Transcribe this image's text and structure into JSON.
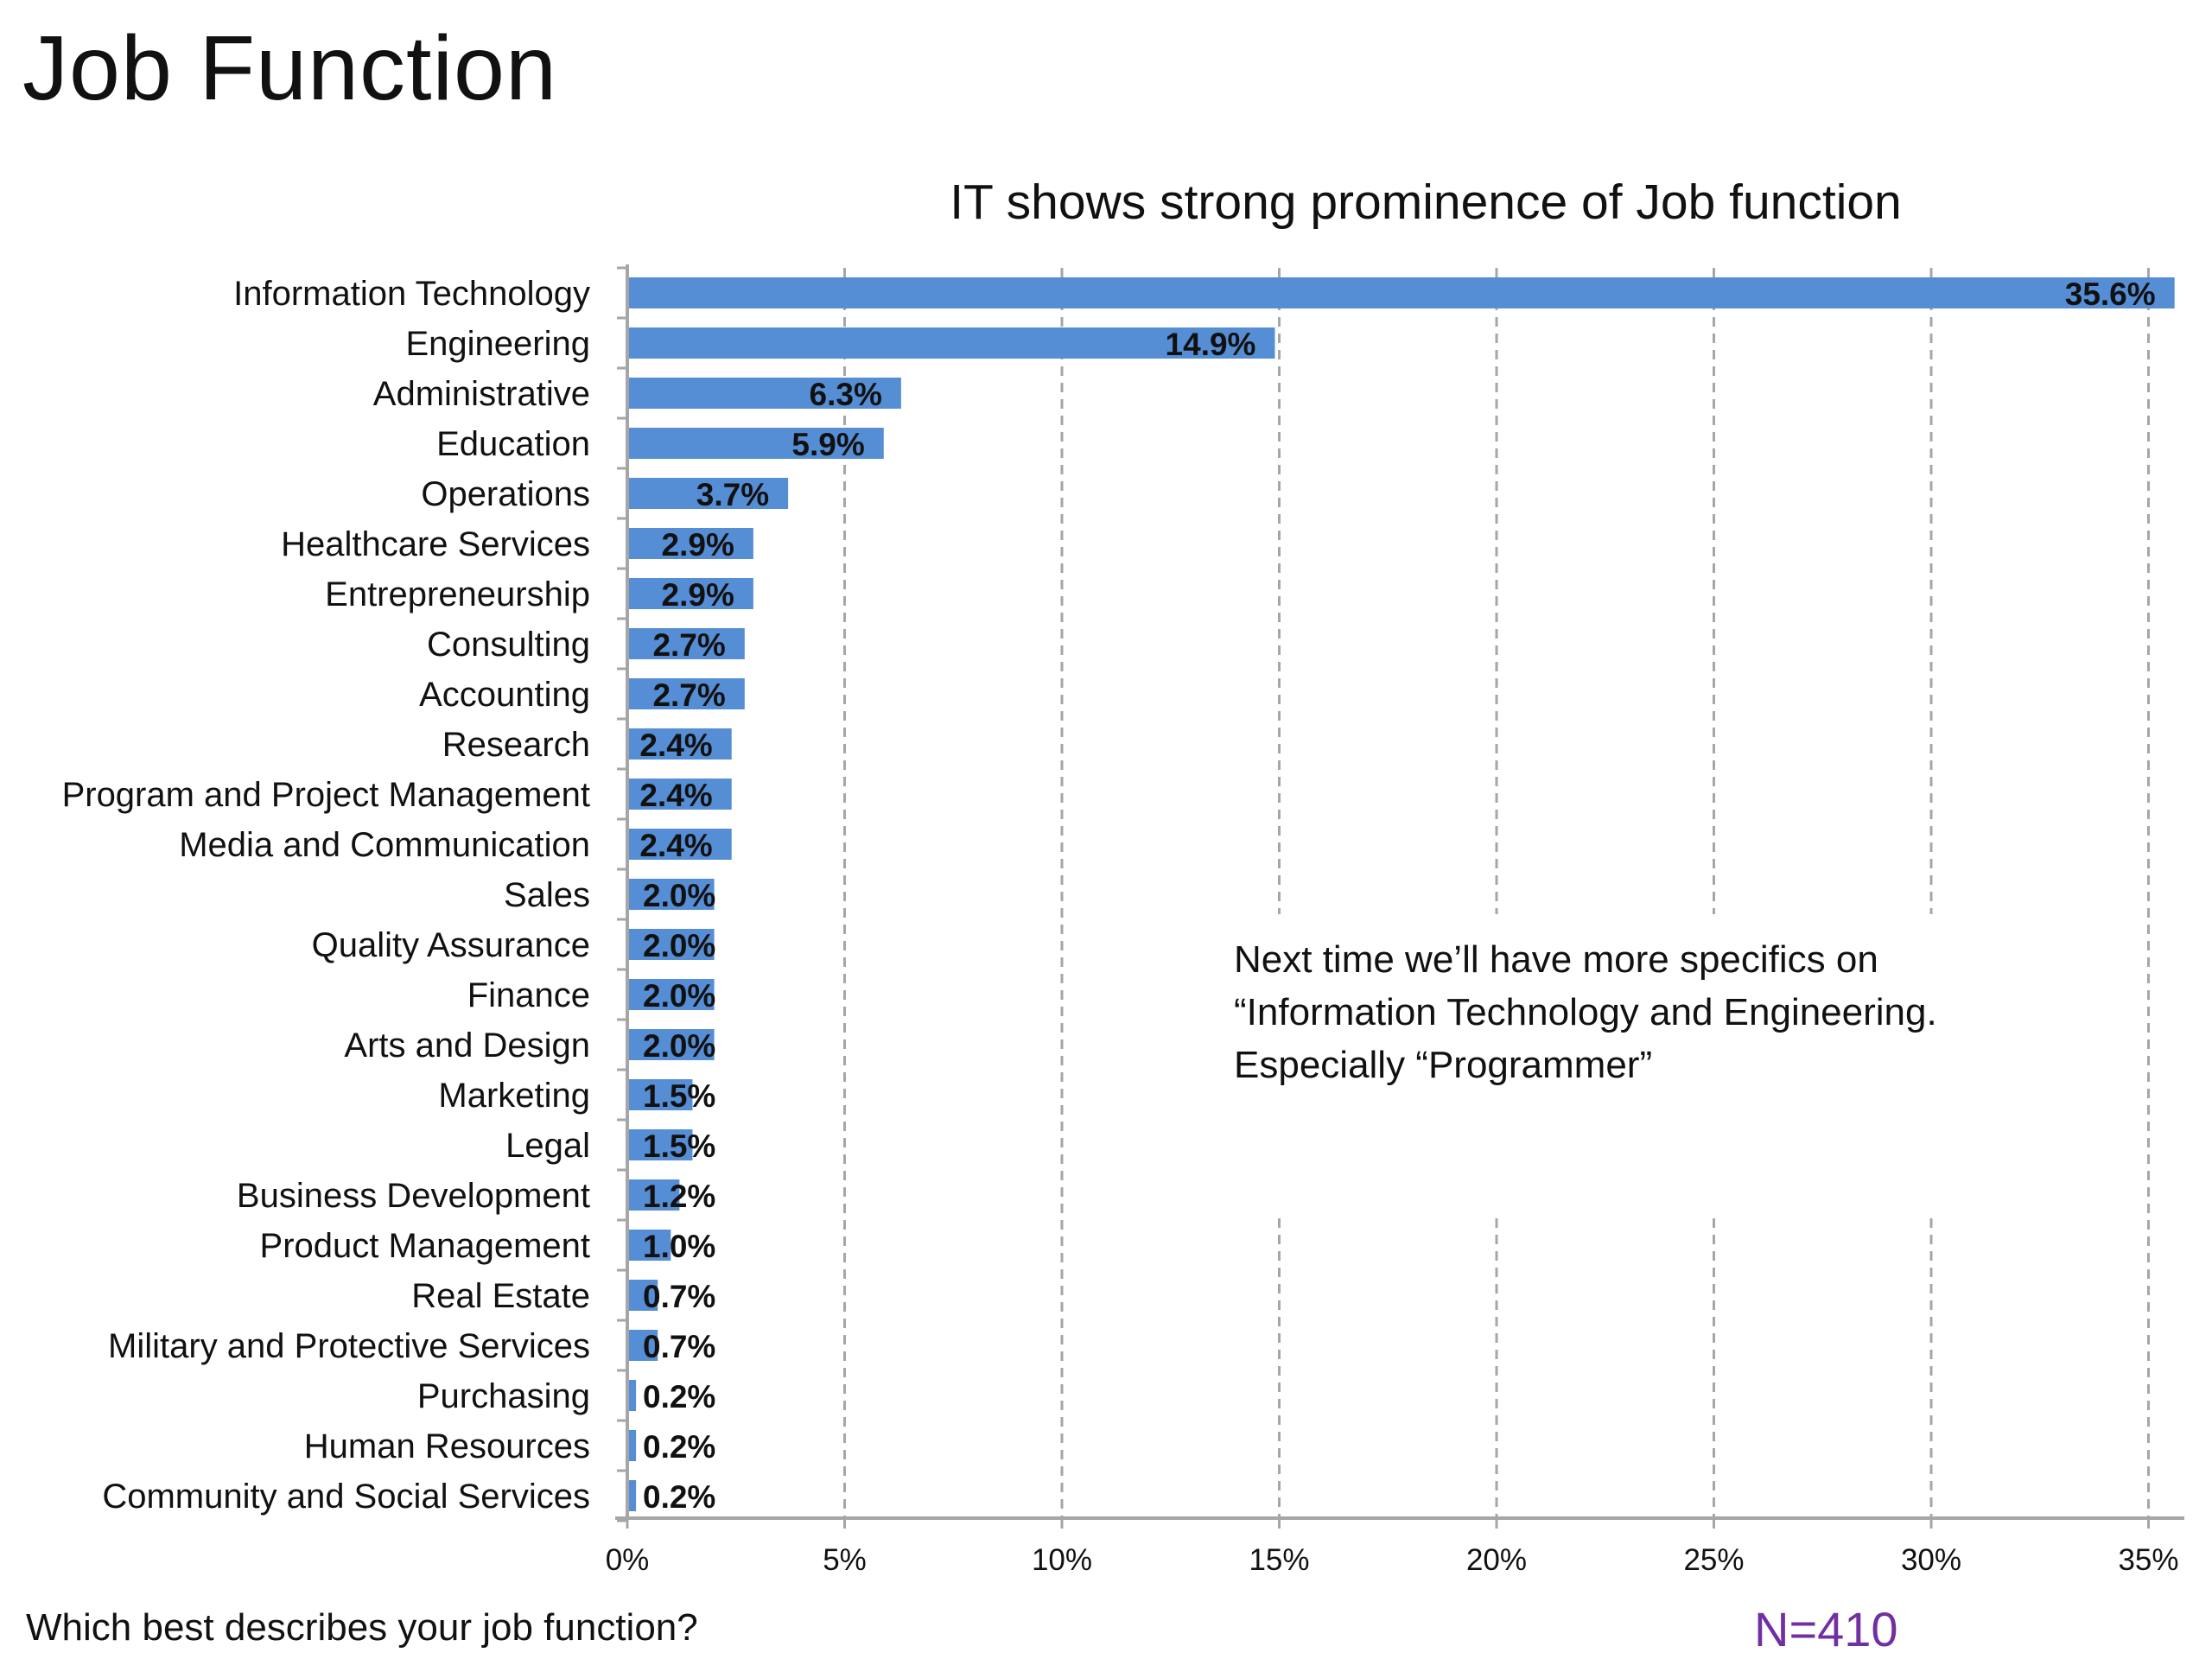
{
  "slide": {
    "title": "Job Function",
    "question": "Which best describes your job function?",
    "sample_size": "N=410",
    "note_lines": [
      "Next time we’ll have more specifics on",
      "“Information Technology and Engineering.",
      "Especially “Programmer”"
    ]
  },
  "colors": {
    "bar": "#558ed5",
    "grid": "#a6a6a6",
    "axis": "#a6a6a6",
    "sample_size": "#7030a0"
  },
  "chart_data": {
    "type": "bar",
    "orientation": "horizontal",
    "title": "IT shows strong prominence of Job function",
    "xlabel": "",
    "ylabel": "",
    "xlim": [
      0,
      35
    ],
    "x_ticks": [
      0,
      5,
      10,
      15,
      20,
      25,
      30,
      35
    ],
    "x_tick_labels": [
      "0%",
      "5%",
      "10%",
      "15%",
      "20%",
      "25%",
      "30%",
      "35%"
    ],
    "grid": "vertical dashed",
    "legend": "none",
    "categories": [
      "Information Technology",
      "Engineering",
      "Administrative",
      "Education",
      "Operations",
      "Healthcare Services",
      "Entrepreneurship",
      "Consulting",
      "Accounting",
      "Research",
      "Program and Project Management",
      "Media and Communication",
      "Sales",
      "Quality Assurance",
      "Finance",
      "Arts and Design",
      "Marketing",
      "Legal",
      "Business Development",
      "Product Management",
      "Real Estate",
      "Military and Protective Services",
      "Purchasing",
      "Human Resources",
      "Community and Social Services"
    ],
    "values": [
      35.6,
      14.9,
      6.3,
      5.9,
      3.7,
      2.9,
      2.9,
      2.7,
      2.7,
      2.4,
      2.4,
      2.4,
      2.0,
      2.0,
      2.0,
      2.0,
      1.5,
      1.5,
      1.2,
      1.0,
      0.7,
      0.7,
      0.2,
      0.2,
      0.2
    ],
    "data_labels": [
      "35.6%",
      "14.9%",
      "6.3%",
      "5.9%",
      "3.7%",
      "2.9%",
      "2.9%",
      "2.7%",
      "2.7%",
      "2.4%",
      "2.4%",
      "2.4%",
      "2.0%",
      "2.0%",
      "2.0%",
      "2.0%",
      "1.5%",
      "1.5%",
      "1.2%",
      "1.0%",
      "0.7%",
      "0.7%",
      "0.2%",
      "0.2%",
      "0.2%"
    ]
  }
}
